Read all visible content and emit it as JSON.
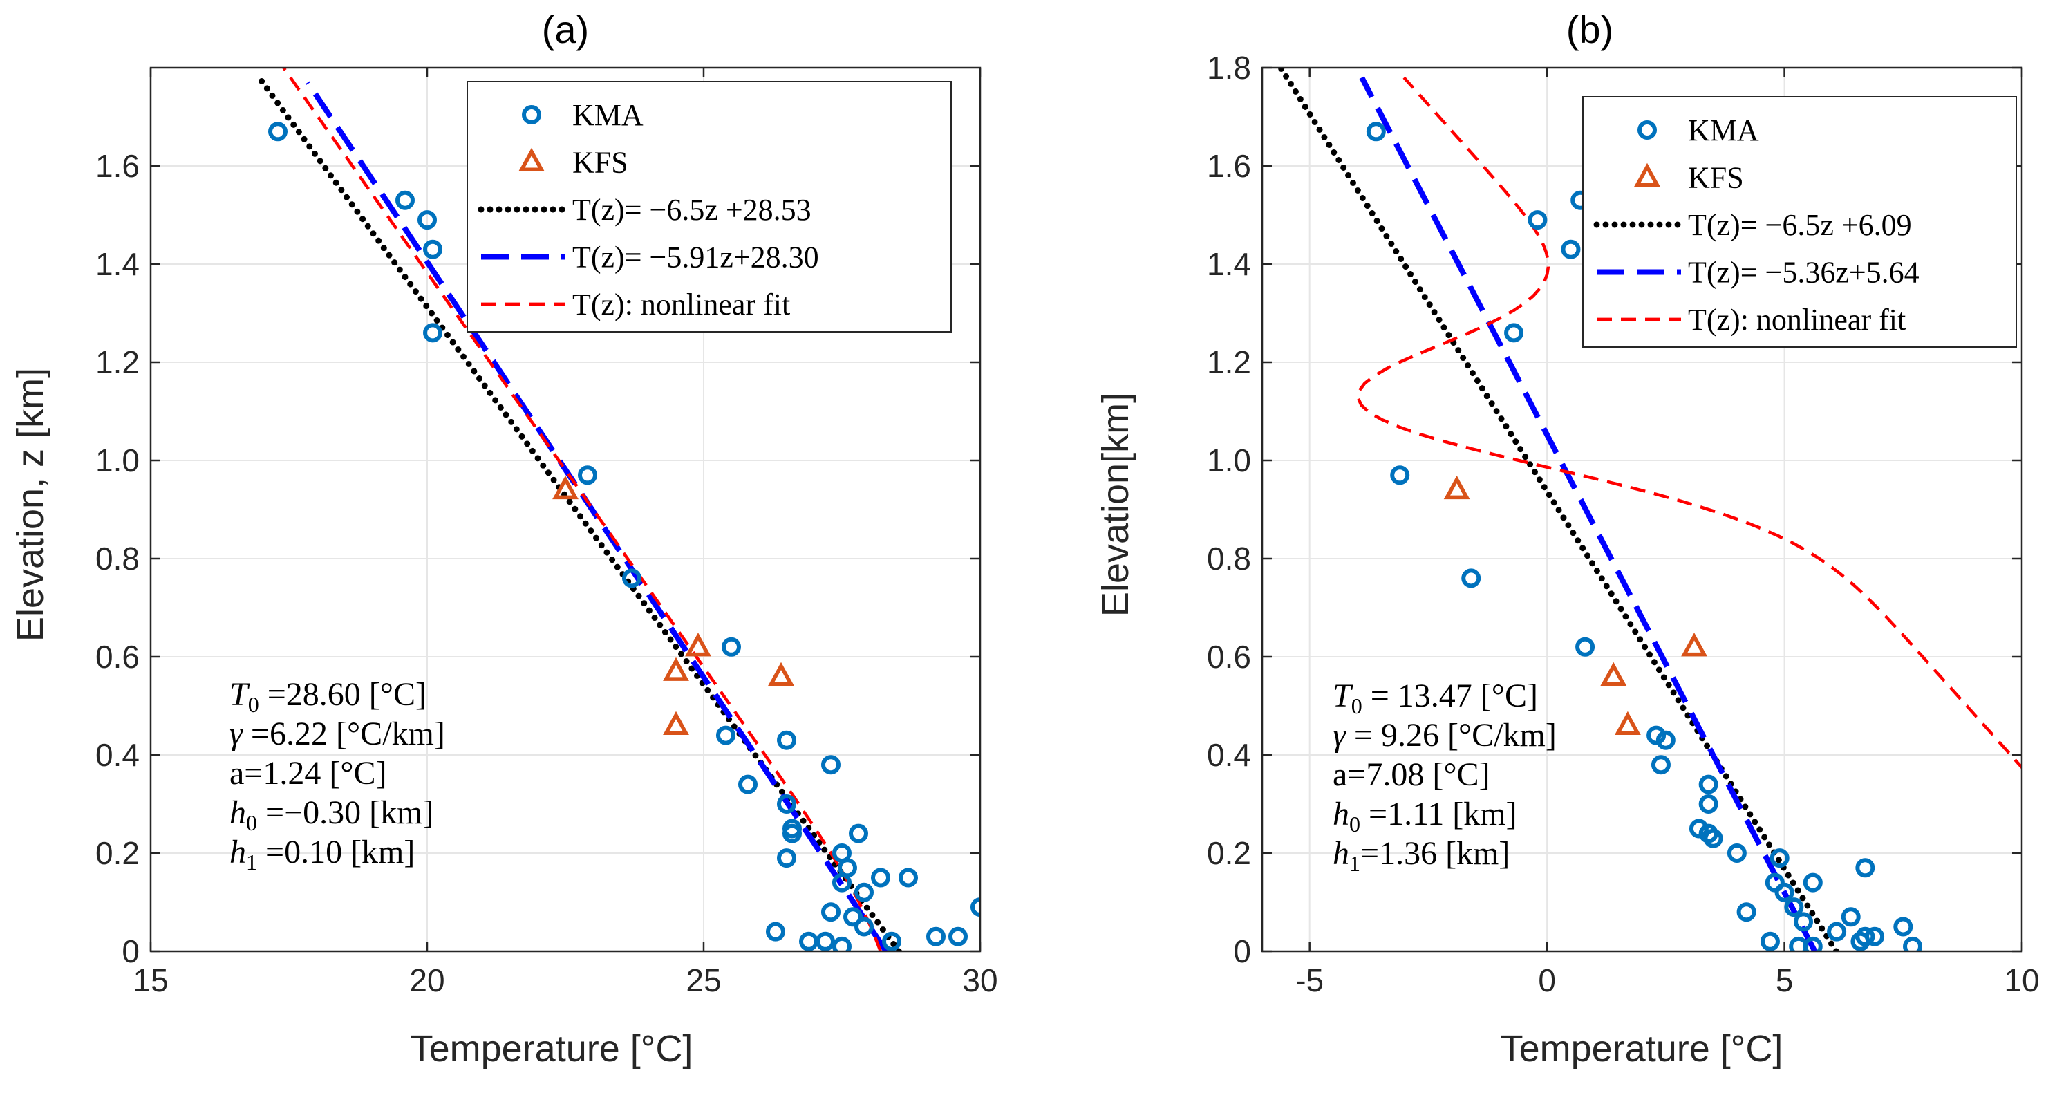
{
  "colors": {
    "kma": "#0072BD",
    "kfs": "#D95319",
    "standard_fit": "#000000",
    "linear_fit": "#0000FF",
    "nonlinear_fit": "#FF0000",
    "grid": "#e6e6e6"
  },
  "chart_data": [
    {
      "type": "scatter",
      "title": "(a)",
      "xlabel": "Temperature [°C]",
      "ylabel": "Elevation, z [km]",
      "xlim": [
        15,
        30
      ],
      "ylim": [
        0,
        1.8
      ],
      "xticks": [
        15,
        20,
        25,
        30
      ],
      "yticks": [
        0,
        0.2,
        0.4,
        0.6,
        0.8,
        1.0,
        1.2,
        1.4,
        1.6
      ],
      "ytick_labels": [
        "0",
        "0.2",
        "0.4",
        "0.6",
        "0.8",
        "1.0",
        "1.2",
        "1.4",
        "1.6"
      ],
      "grid": true,
      "legend_position": "top-right",
      "legend": [
        "KMA",
        "KFS",
        "T(z)= −6.5z +28.53",
        "T(z)= −5.91z+28.30",
        "T(z): nonlinear fit"
      ],
      "series": [
        {
          "name": "KMA",
          "kind": "scatter",
          "marker": "circle",
          "points": [
            [
              17.3,
              1.67
            ],
            [
              19.6,
              1.53
            ],
            [
              20.0,
              1.49
            ],
            [
              20.1,
              1.43
            ],
            [
              20.1,
              1.26
            ],
            [
              22.9,
              0.97
            ],
            [
              23.7,
              0.76
            ],
            [
              25.5,
              0.62
            ],
            [
              25.4,
              0.44
            ],
            [
              26.5,
              0.43
            ],
            [
              25.8,
              0.34
            ],
            [
              27.3,
              0.38
            ],
            [
              26.5,
              0.3
            ],
            [
              26.6,
              0.25
            ],
            [
              26.6,
              0.24
            ],
            [
              27.8,
              0.24
            ],
            [
              26.5,
              0.19
            ],
            [
              27.5,
              0.2
            ],
            [
              27.6,
              0.17
            ],
            [
              27.5,
              0.14
            ],
            [
              28.2,
              0.15
            ],
            [
              28.7,
              0.15
            ],
            [
              27.9,
              0.12
            ],
            [
              27.3,
              0.08
            ],
            [
              27.7,
              0.07
            ],
            [
              27.9,
              0.05
            ],
            [
              30.0,
              0.09
            ],
            [
              26.3,
              0.04
            ],
            [
              26.9,
              0.02
            ],
            [
              27.2,
              0.02
            ],
            [
              27.5,
              0.01
            ],
            [
              28.4,
              0.02
            ],
            [
              29.2,
              0.03
            ],
            [
              29.6,
              0.03
            ]
          ]
        },
        {
          "name": "KFS",
          "kind": "scatter",
          "marker": "triangle",
          "points": [
            [
              22.5,
              0.94
            ],
            [
              24.9,
              0.62
            ],
            [
              24.5,
              0.57
            ],
            [
              26.4,
              0.56
            ],
            [
              24.5,
              0.46
            ]
          ]
        },
        {
          "name": "T(z)= −6.5z +28.53",
          "kind": "line",
          "style": "dotted",
          "slope": -6.5,
          "intercept": 28.53,
          "zrange": [
            0.0,
            1.78
          ]
        },
        {
          "name": "T(z)= −5.91z+28.30",
          "kind": "line",
          "style": "dashed",
          "slope": -5.91,
          "intercept": 28.3,
          "zrange": [
            0.0,
            1.77
          ]
        },
        {
          "name": "T(z): nonlinear fit",
          "kind": "nonlinear",
          "style": "dashed-thin",
          "T0": 28.6,
          "gamma": 6.22,
          "a": 1.24,
          "h0": -0.3,
          "h1": 0.1,
          "zrange": [
            0.0,
            1.8
          ]
        }
      ],
      "annotations": [
        {
          "sym": "T",
          "sub": "0",
          "text": " =28.60 [°C]"
        },
        {
          "sym": "γ",
          "sub": "",
          "text": " =6.22 [°C/km]"
        },
        {
          "sym": "",
          "sub": "",
          "text": "a=1.24 [°C]"
        },
        {
          "sym": "h",
          "sub": "0",
          "text": " =−0.30 [km]"
        },
        {
          "sym": "h",
          "sub": "1",
          "text": " =0.10 [km]"
        }
      ]
    },
    {
      "type": "scatter",
      "title": "(b)",
      "xlabel": "Temperature [°C]",
      "ylabel": "Elevation[km]",
      "xlim": [
        -6,
        10
      ],
      "ylim": [
        0,
        1.8
      ],
      "xticks": [
        -5,
        0,
        5,
        10
      ],
      "yticks": [
        0,
        0.2,
        0.4,
        0.6,
        0.8,
        1.0,
        1.2,
        1.4,
        1.6,
        1.8
      ],
      "ytick_labels": [
        "0",
        "0.2",
        "0.4",
        "0.6",
        "0.8",
        "1.0",
        "1.2",
        "1.4",
        "1.6",
        "1.8"
      ],
      "grid": true,
      "legend_position": "top-right",
      "legend": [
        "KMA",
        "KFS",
        "T(z)= −6.5z +6.09",
        "T(z)= −5.36z+5.64",
        "T(z): nonlinear fit"
      ],
      "series": [
        {
          "name": "KMA",
          "kind": "scatter",
          "marker": "circle",
          "points": [
            [
              -3.6,
              1.67
            ],
            [
              0.7,
              1.53
            ],
            [
              -0.2,
              1.49
            ],
            [
              0.5,
              1.43
            ],
            [
              -0.7,
              1.26
            ],
            [
              -3.1,
              0.97
            ],
            [
              -1.6,
              0.76
            ],
            [
              0.8,
              0.62
            ],
            [
              2.3,
              0.44
            ],
            [
              2.5,
              0.43
            ],
            [
              2.4,
              0.38
            ],
            [
              3.4,
              0.34
            ],
            [
              3.4,
              0.3
            ],
            [
              3.2,
              0.25
            ],
            [
              3.4,
              0.24
            ],
            [
              3.5,
              0.23
            ],
            [
              4.0,
              0.2
            ],
            [
              4.9,
              0.19
            ],
            [
              6.7,
              0.17
            ],
            [
              5.6,
              0.14
            ],
            [
              4.8,
              0.14
            ],
            [
              5.0,
              0.12
            ],
            [
              5.2,
              0.09
            ],
            [
              4.2,
              0.08
            ],
            [
              6.4,
              0.07
            ],
            [
              5.4,
              0.06
            ],
            [
              7.5,
              0.05
            ],
            [
              6.1,
              0.04
            ],
            [
              6.7,
              0.03
            ],
            [
              6.9,
              0.03
            ],
            [
              6.6,
              0.02
            ],
            [
              4.7,
              0.02
            ],
            [
              5.6,
              0.01
            ],
            [
              7.7,
              0.01
            ],
            [
              5.3,
              0.01
            ]
          ]
        },
        {
          "name": "KFS",
          "kind": "scatter",
          "marker": "triangle",
          "points": [
            [
              -1.9,
              0.94
            ],
            [
              3.1,
              0.62
            ],
            [
              1.4,
              0.56
            ],
            [
              1.7,
              0.46
            ]
          ]
        },
        {
          "name": "T(z)= −6.5z +6.09",
          "kind": "line",
          "style": "dotted",
          "slope": -6.5,
          "intercept": 6.09,
          "zrange": [
            0.0,
            1.8
          ]
        },
        {
          "name": "T(z)= −5.36z+5.64",
          "kind": "line",
          "style": "dashed",
          "slope": -5.36,
          "intercept": 5.64,
          "zrange": [
            0.0,
            1.78
          ]
        },
        {
          "name": "T(z): nonlinear fit",
          "kind": "nonlinear",
          "style": "dashed-thin",
          "T0": 13.47,
          "gamma": 9.26,
          "a": 7.08,
          "h0": 1.11,
          "h1": 1.36,
          "zrange": [
            0.0,
            1.78
          ]
        }
      ],
      "annotations": [
        {
          "sym": "T",
          "sub": "0",
          "text": " = 13.47 [°C]"
        },
        {
          "sym": "γ",
          "sub": "",
          "text": " = 9.26 [°C/km]"
        },
        {
          "sym": "",
          "sub": "",
          "text": "a=7.08 [°C]"
        },
        {
          "sym": "h",
          "sub": "0",
          "text": " =1.11 [km]"
        },
        {
          "sym": "h",
          "sub": "1",
          "text": "=1.36 [km]"
        }
      ]
    }
  ]
}
